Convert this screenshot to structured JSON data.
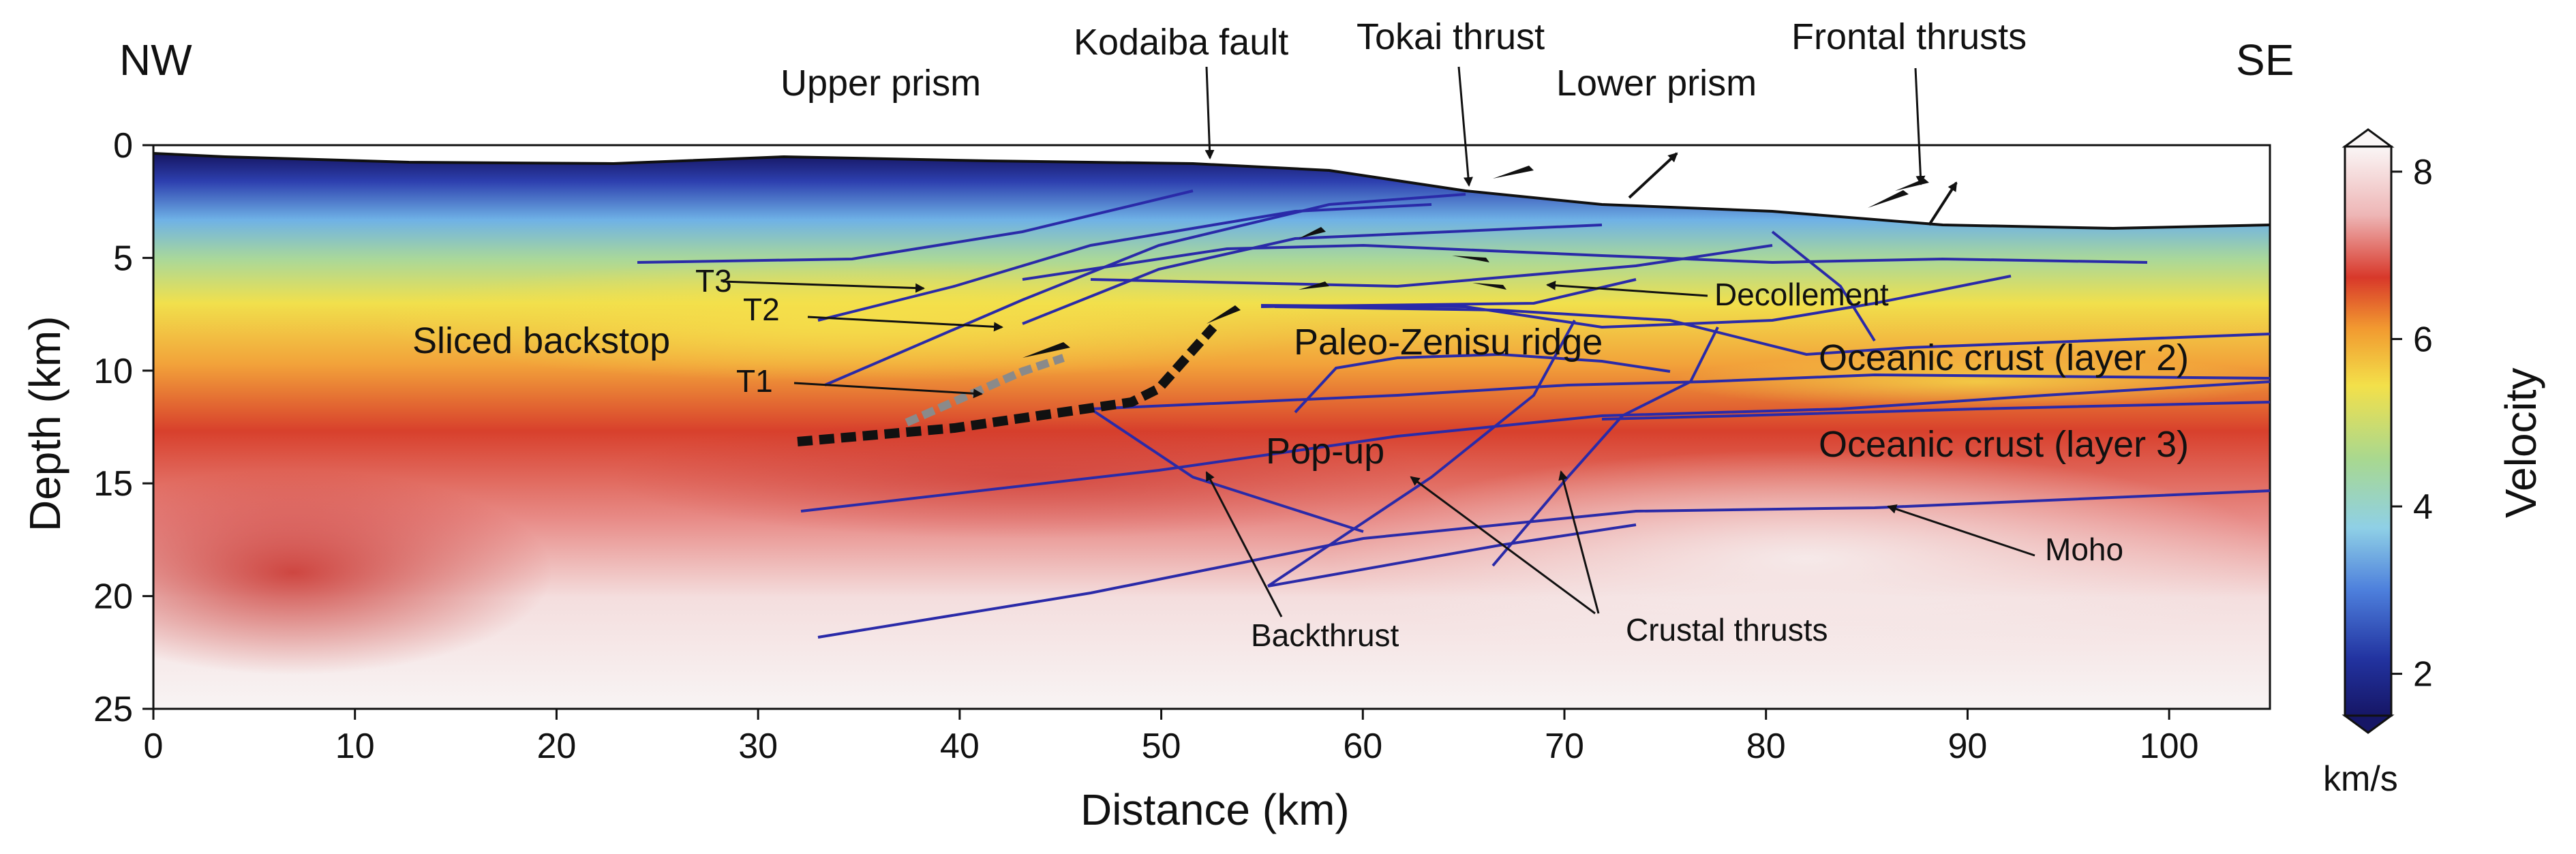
{
  "corner_labels": {
    "left": "NW",
    "right": "SE"
  },
  "axes": {
    "xlabel": "Distance (km)",
    "ylabel": "Depth (km)",
    "x_ticks": [
      "0",
      "10",
      "20",
      "30",
      "40",
      "50",
      "60",
      "70",
      "80",
      "90",
      "100"
    ],
    "y_ticks": [
      "0",
      "5",
      "10",
      "15",
      "20",
      "25"
    ],
    "x_range_km": [
      0,
      105
    ],
    "y_range_km": [
      0,
      25
    ]
  },
  "colorbar": {
    "label": "Velocity",
    "unit": "km/s",
    "ticks": [
      "2",
      "4",
      "6",
      "8"
    ],
    "range": [
      1.5,
      8.3
    ],
    "colors": {
      "low": "#1a1a7a",
      "blue": "#3f5fcf",
      "cyan": "#8ccfe0",
      "green": "#9fd08a",
      "yellow": "#f2e14a",
      "orange": "#f29a2e",
      "red": "#d93a2a",
      "pink": "#efbcbc",
      "high": "#f7f2f2"
    }
  },
  "labels": {
    "upper_prism": "Upper prism",
    "kodaiba_fault": "Kodaiba fault",
    "tokai_thrust": "Tokai thrust",
    "lower_prism": "Lower prism",
    "frontal_thrusts": "Frontal thrusts",
    "t3": "T3",
    "t2": "T2",
    "t1": "T1",
    "sliced_backstop": "Sliced backstop",
    "decollement": "Decollement",
    "paleo_zenisu": "Paleo-Zenisu ridge",
    "oceanic_layer2": "Oceanic crust (layer 2)",
    "oceanic_layer3": "Oceanic crust (layer 3)",
    "pop_up": "Pop-up",
    "moho": "Moho",
    "backthrust": "Backthrust",
    "crustal_thrusts": "Crustal thrusts"
  },
  "line_colors": {
    "fault": "#2a2aa8",
    "annotation": "#111111",
    "dashed_black": "#111111",
    "dashed_gray": "#8a8a8a"
  }
}
